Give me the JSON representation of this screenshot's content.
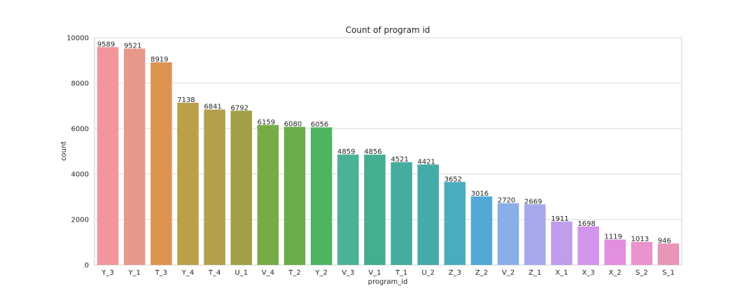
{
  "chart_data": {
    "type": "bar",
    "title": "Count of program id",
    "xlabel": "program_id",
    "ylabel": "count",
    "ylim": [
      0,
      10000
    ],
    "yticks": [
      0,
      2000,
      4000,
      6000,
      8000,
      10000
    ],
    "grid": true,
    "categories": [
      "Y_3",
      "Y_1",
      "T_3",
      "Y_4",
      "T_4",
      "U_1",
      "V_4",
      "T_2",
      "Y_2",
      "V_3",
      "V_1",
      "T_1",
      "U_2",
      "Z_3",
      "Z_2",
      "V_2",
      "Z_1",
      "X_1",
      "X_3",
      "X_2",
      "S_2",
      "S_1"
    ],
    "values": [
      9589,
      9521,
      8919,
      7138,
      6841,
      6792,
      6159,
      6080,
      6056,
      4859,
      4856,
      4521,
      4421,
      3652,
      3016,
      2720,
      2669,
      1911,
      1698,
      1119,
      1013,
      946
    ],
    "colors": [
      "#f0969c",
      "#e8988a",
      "#dd9350",
      "#bba048",
      "#b3a04e",
      "#a2a046",
      "#77ab48",
      "#6aad4a",
      "#4db562",
      "#4bb297",
      "#46ae90",
      "#44ad9e",
      "#45aba9",
      "#4aacbe",
      "#52a9d5",
      "#89aee8",
      "#a6aaec",
      "#c19ded",
      "#d395eb",
      "#e38fe0",
      "#ea93cc",
      "#e895b8"
    ]
  }
}
